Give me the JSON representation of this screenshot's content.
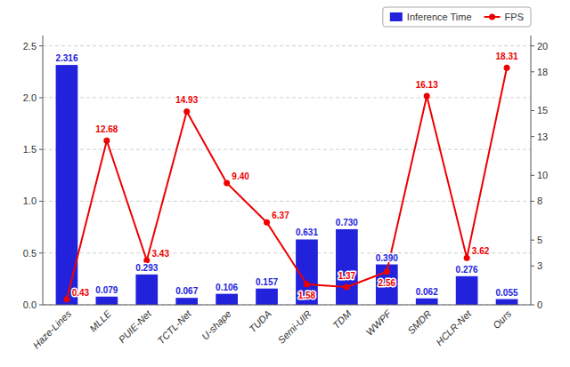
{
  "chart_data": {
    "type": "bar",
    "categories": [
      "Haze-Lines",
      "MLLE",
      "PUIE-Net",
      "TCTL-Net",
      "U-shape",
      "TUDA",
      "Semi-UIR",
      "TDM",
      "WWPF",
      "SMDR",
      "HCLR-Net",
      "Ours"
    ],
    "series": [
      {
        "name": "Inference Time",
        "type": "bar",
        "color": "#2222DD",
        "data_labels": true,
        "values": [
          2.316,
          0.079,
          0.293,
          0.067,
          0.106,
          0.157,
          0.631,
          0.73,
          0.39,
          0.062,
          0.276,
          0.055
        ],
        "value_labels": [
          "2.316",
          "0.079",
          "0.293",
          "0.067",
          "0.106",
          "0.157",
          "0.631",
          "0.730",
          "0.390",
          "0.062",
          "0.276",
          "0.055"
        ]
      },
      {
        "name": "FPS",
        "type": "line",
        "color": "#EE0000",
        "marker": "circle",
        "axis": "y2",
        "data_labels": true,
        "values": [
          0.43,
          12.68,
          3.43,
          14.93,
          9.4,
          6.37,
          1.58,
          1.37,
          2.56,
          16.13,
          3.62,
          18.31
        ],
        "value_labels": [
          "0.43",
          "12.68",
          "3.43",
          "14.93",
          "9.40",
          "6.37",
          "1.58",
          "1.37",
          "2.56",
          "16.13",
          "3.62",
          "18.31"
        ]
      }
    ],
    "ylim": [
      0.0,
      2.6
    ],
    "yticks": [
      {
        "value": 0,
        "label": "0.0"
      },
      0.5,
      {
        "value": 1,
        "label": "1.0"
      },
      1.5,
      {
        "value": 2,
        "label": "2.0"
      },
      2.5
    ],
    "y2lim": [
      0.0,
      20.8
    ],
    "y2ticks": [
      0,
      3,
      5,
      8,
      10,
      13,
      15,
      18,
      20
    ],
    "grid": true,
    "legend": "upper right"
  }
}
